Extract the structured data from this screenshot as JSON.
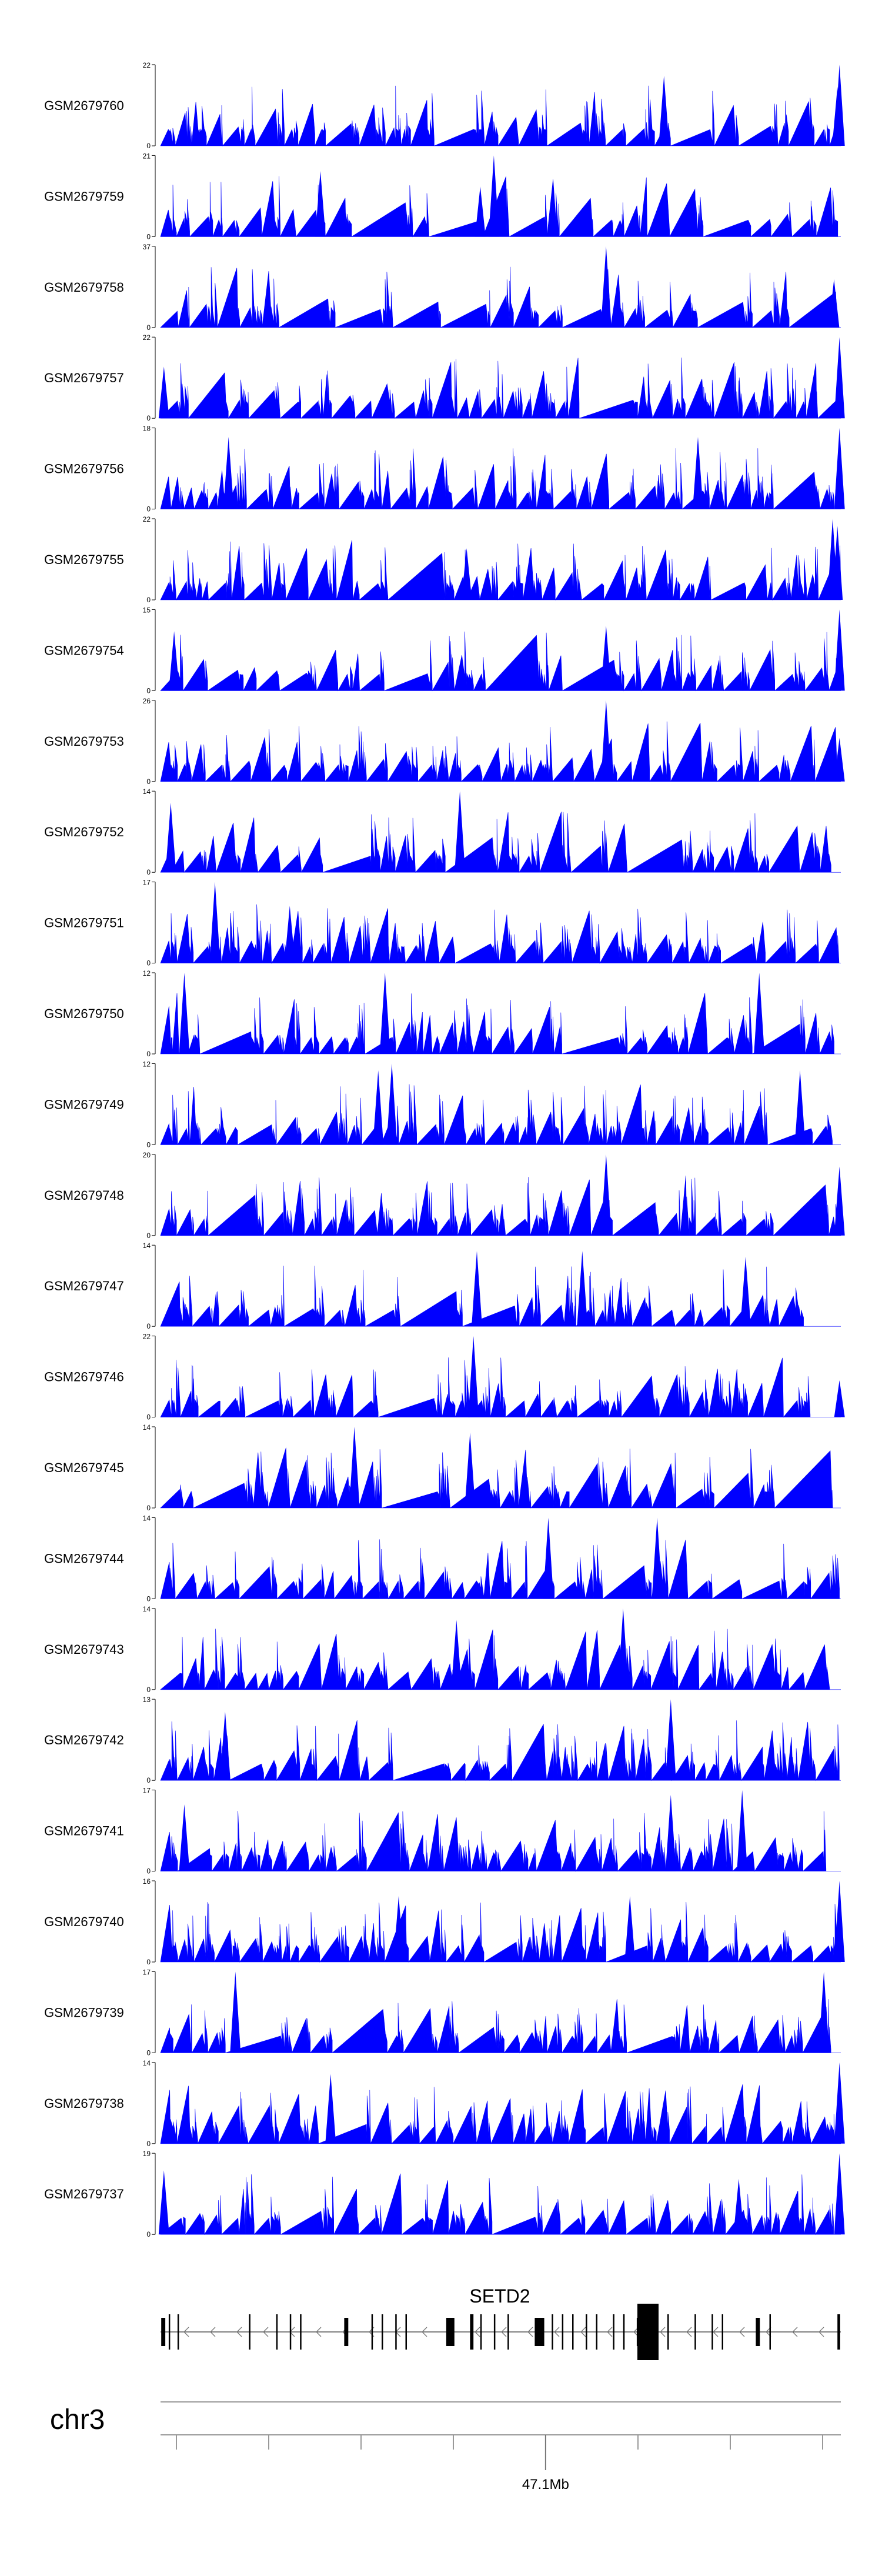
{
  "chart_data": {
    "type": "area",
    "track_color": "#0000ff",
    "tracks": [
      {
        "name": "GSM2679760",
        "ymax": 22,
        "ymin": 0,
        "seed": 11,
        "density": 0.72,
        "peaks": [
          {
            "p": 0.74,
            "h": 19
          },
          {
            "p": 0.998,
            "h": 22
          },
          {
            "p": 0.995,
            "h": 16
          }
        ]
      },
      {
        "name": "GSM2679759",
        "ymax": 21,
        "ymin": 0,
        "seed": 23,
        "density": 0.7,
        "peaks": [
          {
            "p": 0.235,
            "h": 17
          },
          {
            "p": 0.49,
            "h": 21
          },
          {
            "p": 0.47,
            "h": 13
          }
        ]
      },
      {
        "name": "GSM2679758",
        "ymax": 37,
        "ymin": 0,
        "seed": 37,
        "density": 0.55,
        "peaks": [
          {
            "p": 0.655,
            "h": 37
          },
          {
            "p": 0.99,
            "h": 22
          }
        ]
      },
      {
        "name": "GSM2679757",
        "ymax": 22,
        "ymin": 0,
        "seed": 41,
        "density": 0.82,
        "peaks": [
          {
            "p": 0.998,
            "h": 22
          },
          {
            "p": 0.005,
            "h": 14
          }
        ]
      },
      {
        "name": "GSM2679756",
        "ymax": 18,
        "ymin": 0,
        "seed": 53,
        "density": 0.8,
        "peaks": [
          {
            "p": 0.998,
            "h": 18
          },
          {
            "p": 0.1,
            "h": 16
          },
          {
            "p": 0.79,
            "h": 16
          }
        ]
      },
      {
        "name": "GSM2679755",
        "ymax": 22,
        "ymin": 0,
        "seed": 67,
        "density": 0.9,
        "peaks": [
          {
            "p": 0.988,
            "h": 22
          },
          {
            "p": 0.995,
            "h": 20
          },
          {
            "p": 0.45,
            "h": 14
          }
        ]
      },
      {
        "name": "GSM2679754",
        "ymax": 15,
        "ymin": 0,
        "seed": 71,
        "density": 0.6,
        "peaks": [
          {
            "p": 0.998,
            "h": 15
          },
          {
            "p": 0.655,
            "h": 12
          },
          {
            "p": 0.02,
            "h": 11
          }
        ]
      },
      {
        "name": "GSM2679753",
        "ymax": 26,
        "ymin": 0,
        "seed": 83,
        "density": 0.85,
        "peaks": [
          {
            "p": 0.655,
            "h": 26
          },
          {
            "p": 0.998,
            "h": 14
          }
        ]
      },
      {
        "name": "GSM2679752",
        "ymax": 14,
        "ymin": 0,
        "seed": 97,
        "density": 0.8,
        "peaks": [
          {
            "p": 0.44,
            "h": 14
          },
          {
            "p": 0.015,
            "h": 12
          }
        ]
      },
      {
        "name": "GSM2679751",
        "ymax": 17,
        "ymin": 0,
        "seed": 101,
        "density": 0.75,
        "peaks": [
          {
            "p": 0.08,
            "h": 17
          },
          {
            "p": 0.19,
            "h": 12
          }
        ]
      },
      {
        "name": "GSM2679750",
        "ymax": 12,
        "ymin": 0,
        "seed": 113,
        "density": 0.8,
        "peaks": [
          {
            "p": 0.035,
            "h": 12
          },
          {
            "p": 0.33,
            "h": 12
          },
          {
            "p": 0.88,
            "h": 12
          }
        ]
      },
      {
        "name": "GSM2679749",
        "ymax": 12,
        "ymin": 0,
        "seed": 127,
        "density": 0.85,
        "peaks": [
          {
            "p": 0.34,
            "h": 12
          },
          {
            "p": 0.32,
            "h": 11
          },
          {
            "p": 0.94,
            "h": 11
          }
        ]
      },
      {
        "name": "GSM2679748",
        "ymax": 20,
        "ymin": 0,
        "seed": 131,
        "density": 0.85,
        "peaks": [
          {
            "p": 0.655,
            "h": 20
          },
          {
            "p": 0.998,
            "h": 17
          }
        ]
      },
      {
        "name": "GSM2679747",
        "ymax": 14,
        "ymin": 0,
        "seed": 139,
        "density": 0.85,
        "peaks": [
          {
            "p": 0.465,
            "h": 13
          },
          {
            "p": 0.62,
            "h": 13
          },
          {
            "p": 0.86,
            "h": 12
          }
        ]
      },
      {
        "name": "GSM2679746",
        "ymax": 22,
        "ymin": 0,
        "seed": 149,
        "density": 0.85,
        "peaks": [
          {
            "p": 0.46,
            "h": 22
          },
          {
            "p": 0.998,
            "h": 10
          }
        ]
      },
      {
        "name": "GSM2679745",
        "ymax": 14,
        "ymin": 0,
        "seed": 151,
        "density": 0.8,
        "peaks": [
          {
            "p": 0.285,
            "h": 14
          },
          {
            "p": 0.455,
            "h": 13
          }
        ]
      },
      {
        "name": "GSM2679744",
        "ymax": 14,
        "ymin": 0,
        "seed": 163,
        "density": 0.8,
        "peaks": [
          {
            "p": 0.57,
            "h": 14
          },
          {
            "p": 0.73,
            "h": 14
          }
        ]
      },
      {
        "name": "GSM2679743",
        "ymax": 14,
        "ymin": 0,
        "seed": 173,
        "density": 0.85,
        "peaks": [
          {
            "p": 0.68,
            "h": 14
          },
          {
            "p": 0.435,
            "h": 12
          }
        ]
      },
      {
        "name": "GSM2679742",
        "ymax": 13,
        "ymin": 0,
        "seed": 181,
        "density": 0.85,
        "peaks": [
          {
            "p": 0.75,
            "h": 13
          },
          {
            "p": 0.095,
            "h": 11
          }
        ]
      },
      {
        "name": "GSM2679741",
        "ymax": 17,
        "ymin": 0,
        "seed": 191,
        "density": 0.9,
        "peaks": [
          {
            "p": 0.855,
            "h": 17
          },
          {
            "p": 0.75,
            "h": 16
          },
          {
            "p": 0.035,
            "h": 14
          }
        ]
      },
      {
        "name": "GSM2679740",
        "ymax": 16,
        "ymin": 0,
        "seed": 197,
        "density": 0.85,
        "peaks": [
          {
            "p": 0.998,
            "h": 16
          },
          {
            "p": 0.35,
            "h": 13
          },
          {
            "p": 0.69,
            "h": 13
          }
        ]
      },
      {
        "name": "GSM2679739",
        "ymax": 17,
        "ymin": 0,
        "seed": 211,
        "density": 0.85,
        "peaks": [
          {
            "p": 0.11,
            "h": 17
          },
          {
            "p": 0.975,
            "h": 17
          }
        ]
      },
      {
        "name": "GSM2679738",
        "ymax": 14,
        "ymin": 0,
        "seed": 223,
        "density": 0.9,
        "peaks": [
          {
            "p": 0.998,
            "h": 14
          },
          {
            "p": 0.25,
            "h": 12
          }
        ]
      },
      {
        "name": "GSM2679737",
        "ymax": 19,
        "ymin": 0,
        "seed": 227,
        "density": 0.85,
        "peaks": [
          {
            "p": 0.998,
            "h": 19
          },
          {
            "p": 0.005,
            "h": 15
          },
          {
            "p": 0.85,
            "h": 13
          }
        ]
      }
    ],
    "gene": {
      "name": "SETD2",
      "strand": "-",
      "exons": [
        {
          "pos": 0.001,
          "w": 0.006
        },
        {
          "pos": 0.012,
          "w": 0.002
        },
        {
          "pos": 0.025,
          "w": 0.002
        },
        {
          "pos": 0.13,
          "w": 0.002
        },
        {
          "pos": 0.17,
          "w": 0.002
        },
        {
          "pos": 0.19,
          "w": 0.002
        },
        {
          "pos": 0.205,
          "w": 0.002
        },
        {
          "pos": 0.27,
          "w": 0.006
        },
        {
          "pos": 0.31,
          "w": 0.002
        },
        {
          "pos": 0.325,
          "w": 0.002
        },
        {
          "pos": 0.345,
          "w": 0.002
        },
        {
          "pos": 0.36,
          "w": 0.002
        },
        {
          "pos": 0.42,
          "w": 0.012
        },
        {
          "pos": 0.455,
          "w": 0.005
        },
        {
          "pos": 0.47,
          "w": 0.002
        },
        {
          "pos": 0.49,
          "w": 0.002
        },
        {
          "pos": 0.51,
          "w": 0.002
        },
        {
          "pos": 0.55,
          "w": 0.014
        },
        {
          "pos": 0.575,
          "w": 0.002
        },
        {
          "pos": 0.59,
          "w": 0.002
        },
        {
          "pos": 0.605,
          "w": 0.002
        },
        {
          "pos": 0.625,
          "w": 0.002
        },
        {
          "pos": 0.64,
          "w": 0.002
        },
        {
          "pos": 0.665,
          "w": 0.002
        },
        {
          "pos": 0.68,
          "w": 0.002
        },
        {
          "pos": 0.7,
          "w": 0.006
        },
        {
          "pos": 0.72,
          "w": 0.002
        },
        {
          "pos": 0.745,
          "w": 0.002
        },
        {
          "pos": 0.785,
          "w": 0.002
        },
        {
          "pos": 0.81,
          "w": 0.002
        },
        {
          "pos": 0.825,
          "w": 0.002
        },
        {
          "pos": 0.875,
          "w": 0.006
        },
        {
          "pos": 0.895,
          "w": 0.002
        },
        {
          "pos": 0.995,
          "w": 0.004
        }
      ]
    },
    "chromosome": "chr3",
    "axis_label": "47.1Mb",
    "axis_label_pos": 0.566
  }
}
